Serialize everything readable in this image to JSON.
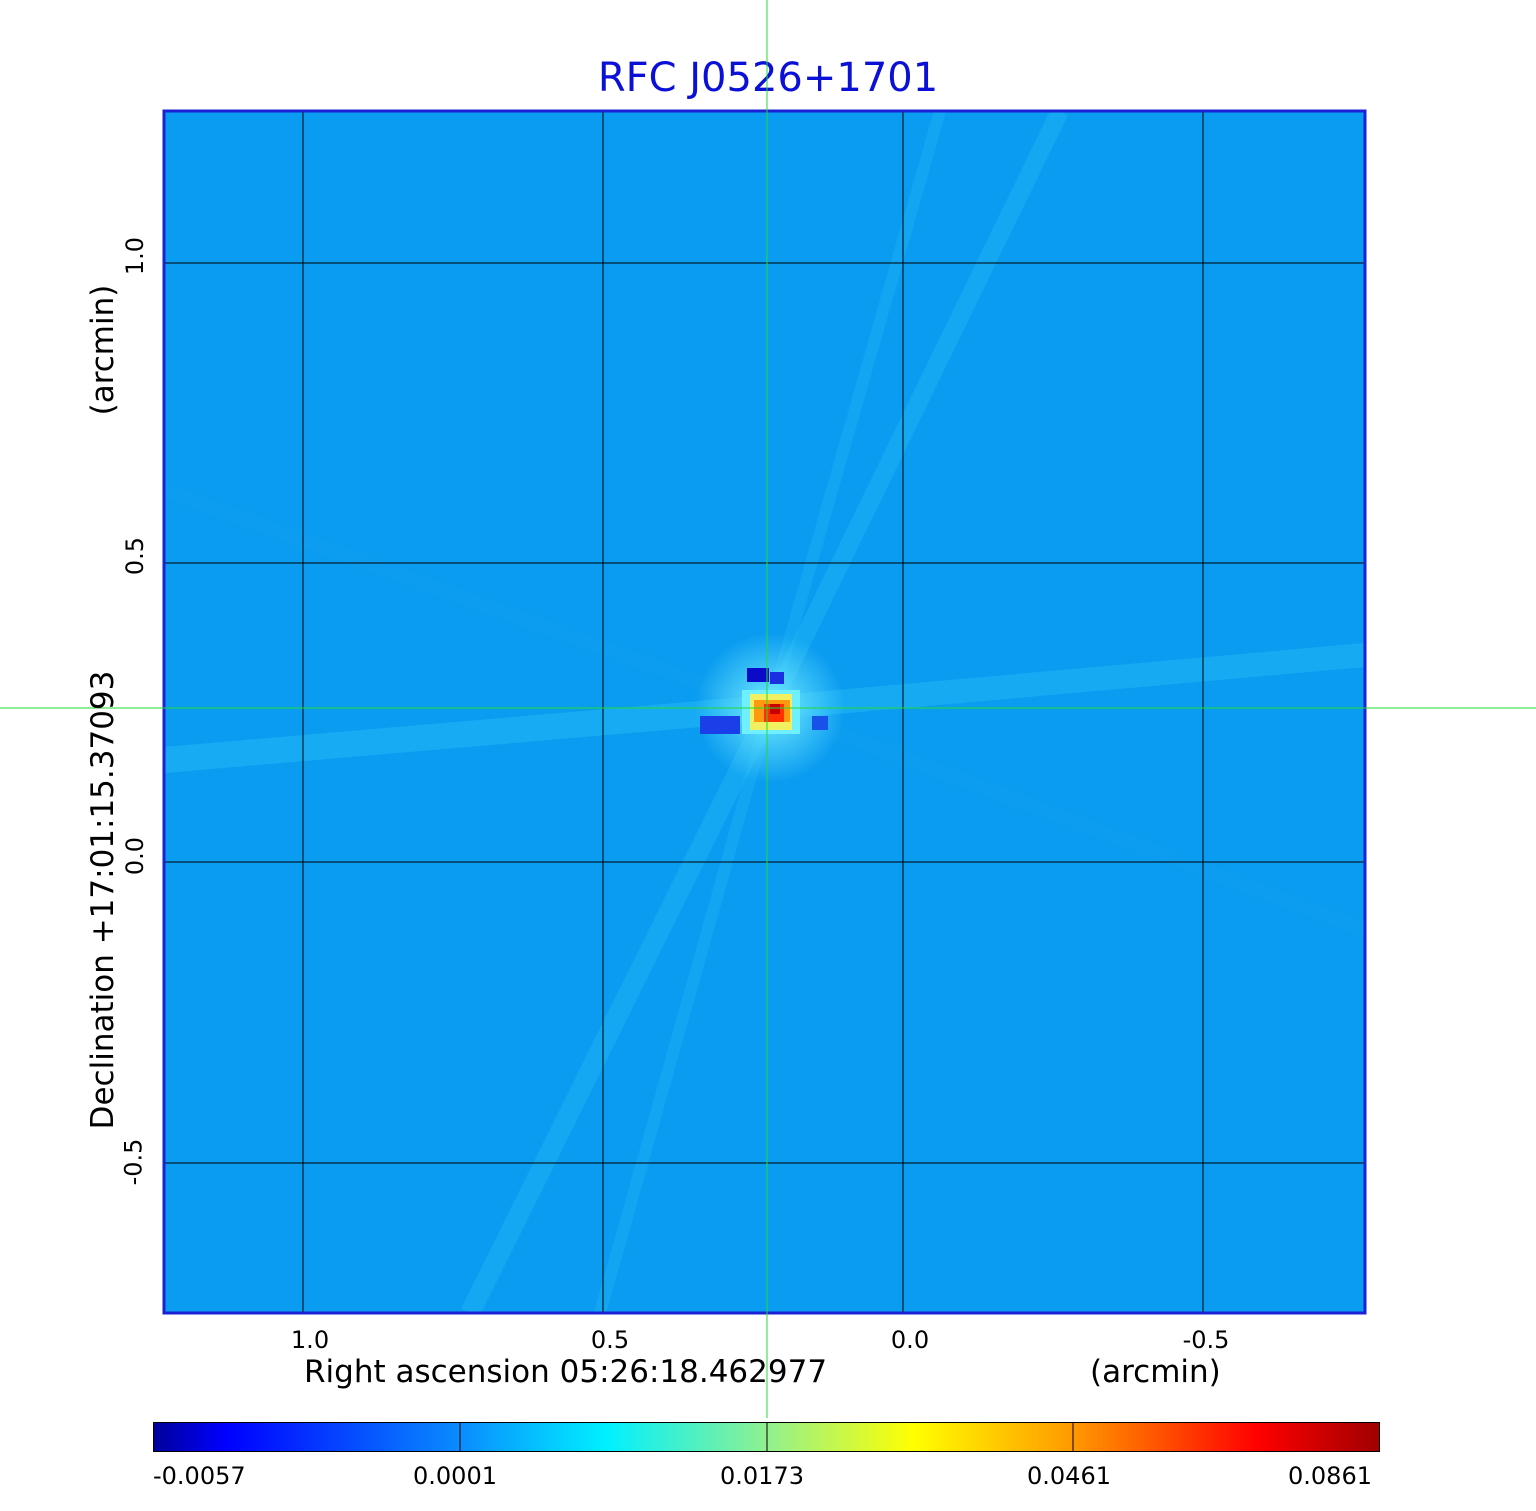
{
  "title": "RFC J0526+1701",
  "x_axis": {
    "label": "Right ascension  05:26:18.462977",
    "unit": "(arcmin)",
    "ticks": [
      "1.0",
      "0.5",
      "0.0",
      "-0.5"
    ]
  },
  "y_axis": {
    "label": "Declination  +17:01:15.37093",
    "unit": "(arcmin)",
    "ticks": [
      "1.0",
      "0.5",
      "0.0",
      "-0.5"
    ]
  },
  "colorbar": {
    "ticks": [
      "-0.0057",
      "0.0001",
      "0.0173",
      "0.0461",
      "0.0861"
    ]
  },
  "colors": {
    "title": "#0b10d6",
    "frame": "#1a22d4",
    "crosshair": "#22dd33",
    "background_map": "#0a9cf0"
  }
}
